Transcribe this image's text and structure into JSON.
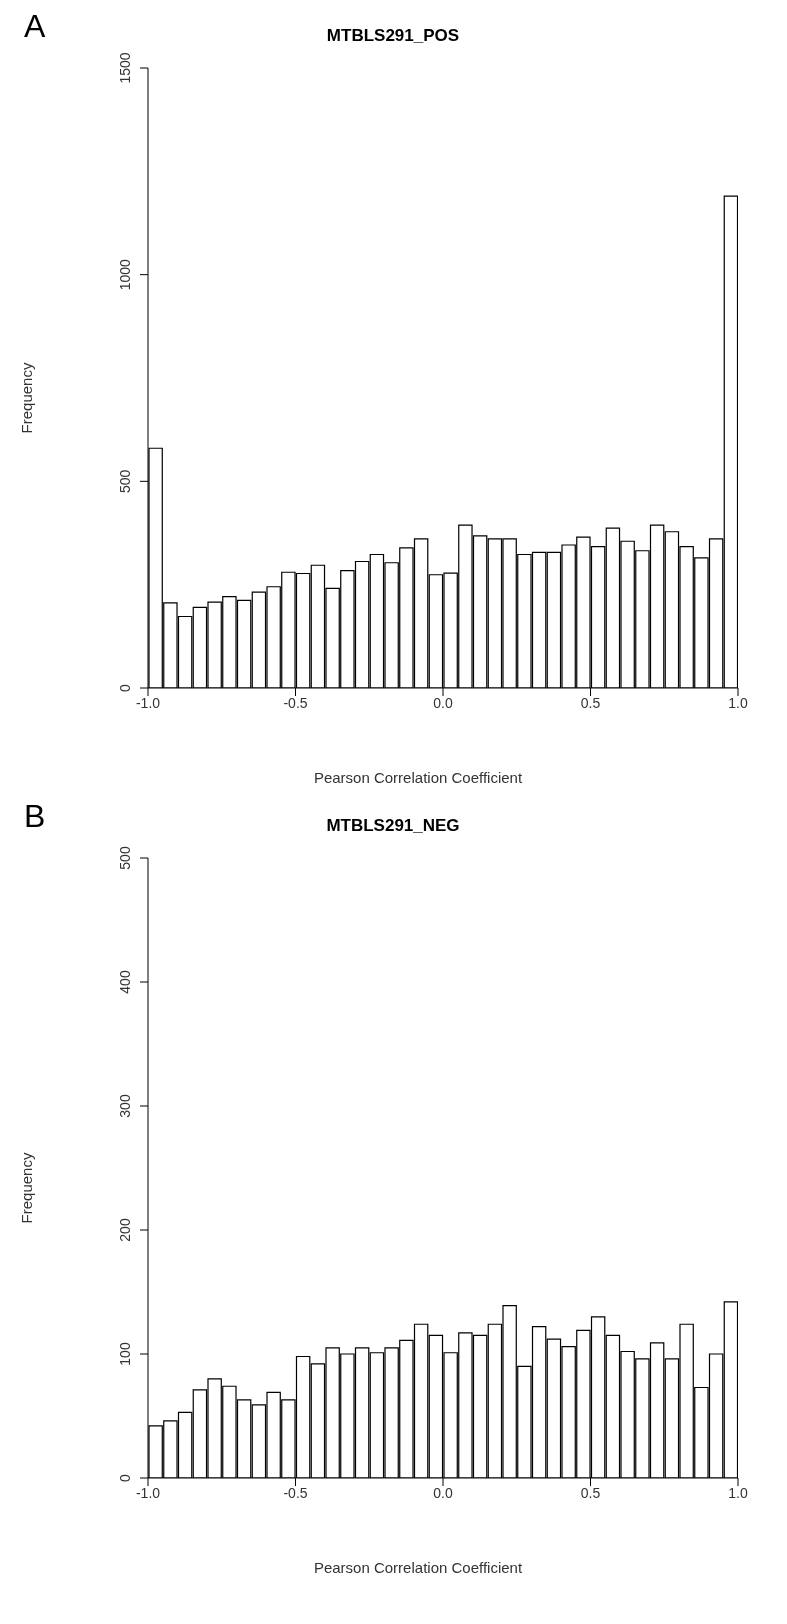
{
  "chart_data": [
    {
      "type": "histogram",
      "title": "MTBLS291_POS",
      "xlabel": "Pearson Correlation Coefficient",
      "ylabel": "Frequency",
      "annotations": [
        "A"
      ],
      "color": "#ffffff",
      "bins": [
        -1.0,
        -0.95,
        -0.9,
        -0.85,
        -0.8,
        -0.75,
        -0.7,
        -0.65,
        -0.6,
        -0.55,
        -0.5,
        -0.45,
        -0.4,
        -0.35,
        -0.3,
        -0.25,
        -0.2,
        -0.15,
        -0.1,
        -0.05,
        0.0,
        0.05,
        0.1,
        0.15,
        0.2,
        0.25,
        0.3,
        0.35,
        0.4,
        0.45,
        0.5,
        0.55,
        0.6,
        0.65,
        0.7,
        0.75,
        0.8,
        0.85,
        0.9,
        0.95,
        1.0
      ],
      "values": [
        580,
        206,
        173,
        195,
        208,
        221,
        212,
        232,
        245,
        280,
        277,
        297,
        241,
        284,
        306,
        323,
        303,
        339,
        361,
        274,
        278,
        394,
        368,
        361,
        361,
        323,
        328,
        328,
        346,
        365,
        342,
        387,
        355,
        332,
        394,
        378,
        342,
        315,
        361,
        1190
      ],
      "xlim": [
        -1,
        1
      ],
      "xticks": [
        {
          "value": -1,
          "label": "-1.0"
        },
        {
          "value": -0.5,
          "label": "-0.5"
        },
        {
          "value": 0,
          "label": "0.0"
        },
        {
          "value": 0.5,
          "label": "0.5"
        },
        {
          "value": 1,
          "label": "1.0"
        }
      ],
      "ylim": [
        0,
        1500
      ],
      "yticks": [
        0,
        500,
        1000,
        1500
      ],
      "grid": false,
      "legend": false
    },
    {
      "type": "histogram",
      "title": "MTBLS291_NEG",
      "xlabel": "Pearson Correlation Coefficient",
      "ylabel": "Frequency",
      "annotations": [
        "B"
      ],
      "color": "#ffffff",
      "bins": [
        -1.0,
        -0.95,
        -0.9,
        -0.85,
        -0.8,
        -0.75,
        -0.7,
        -0.65,
        -0.6,
        -0.55,
        -0.5,
        -0.45,
        -0.4,
        -0.35,
        -0.3,
        -0.25,
        -0.2,
        -0.15,
        -0.1,
        -0.05,
        0.0,
        0.05,
        0.1,
        0.15,
        0.2,
        0.25,
        0.3,
        0.35,
        0.4,
        0.45,
        0.5,
        0.55,
        0.6,
        0.65,
        0.7,
        0.75,
        0.8,
        0.85,
        0.9,
        0.95,
        1.0
      ],
      "values": [
        42,
        46,
        53,
        71,
        80,
        74,
        63,
        59,
        69,
        63,
        98,
        92,
        105,
        100,
        105,
        101,
        105,
        111,
        124,
        115,
        101,
        117,
        115,
        124,
        139,
        90,
        122,
        112,
        106,
        119,
        130,
        115,
        102,
        96,
        109,
        96,
        124,
        73,
        100,
        142
      ],
      "xlim": [
        -1,
        1
      ],
      "xticks": [
        {
          "value": -1,
          "label": "-1.0"
        },
        {
          "value": -0.5,
          "label": "-0.5"
        },
        {
          "value": 0,
          "label": "0.0"
        },
        {
          "value": 0.5,
          "label": "0.5"
        },
        {
          "value": 1,
          "label": "1.0"
        }
      ],
      "ylim": [
        0,
        500
      ],
      "yticks": [
        0,
        100,
        200,
        300,
        400,
        500
      ],
      "grid": false,
      "legend": false
    }
  ]
}
